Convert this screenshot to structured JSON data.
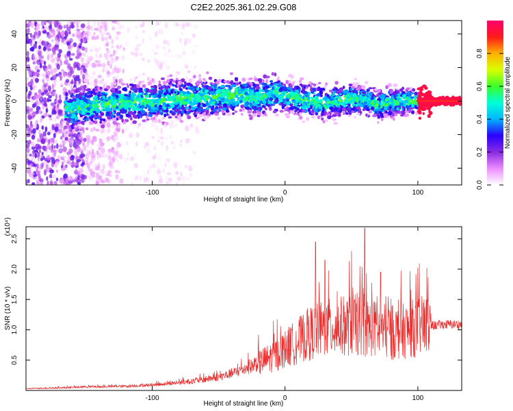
{
  "title": "C2E2.2025.361.02.29.G08",
  "colors": {
    "snr_line": "#ee2a2a",
    "colorbar": [
      "#ffffff",
      "#ec8cff",
      "#8a2be2",
      "#2a00ff",
      "#00b4ff",
      "#00ffd8",
      "#3cff2a",
      "#d8ff00",
      "#ffb000",
      "#ff1a1a",
      "#ff006e"
    ]
  },
  "chart_data": [
    {
      "type": "heatmap",
      "title": "C2E2.2025.361.02.29.G08",
      "xlabel": "Height of straight line (km)",
      "ylabel": "Frequency (Hz)",
      "xlim": [
        -195,
        133
      ],
      "ylim": [
        -50,
        48
      ],
      "xticks": [
        -100,
        0,
        100
      ],
      "yticks": [
        -40,
        -20,
        0,
        20,
        40
      ],
      "colorbar": {
        "label": "Normalized spectral amplitude",
        "range": [
          0,
          1
        ],
        "ticks": [
          0.0,
          0.2,
          0.4,
          0.6,
          0.8
        ]
      },
      "ridge_x": [
        -195,
        -160,
        -150,
        -140,
        -120,
        -100,
        -80,
        -60,
        -40,
        -35,
        -30,
        -25,
        -20,
        -15,
        -10,
        0,
        10,
        20,
        30,
        40,
        50,
        60,
        70,
        80,
        90,
        100,
        110,
        120,
        133
      ],
      "ridge_y": [
        -6,
        -5,
        -3,
        -2,
        -1,
        0,
        1,
        2,
        3,
        4,
        3,
        2,
        2,
        3,
        5,
        3,
        1,
        0,
        -1,
        0,
        1,
        1,
        -2,
        -1,
        0,
        0,
        0,
        0,
        0
      ]
    },
    {
      "type": "line",
      "title": "",
      "xlabel": "Height of straight line (km)",
      "ylabel": "SNR (10 * v/v)",
      "y_multiplier": "(x10⁴)",
      "xlim": [
        -195,
        133
      ],
      "ylim": [
        0,
        2.7
      ],
      "xticks": [
        -100,
        0,
        100
      ],
      "yticks": [
        0.5,
        1.0,
        1.5,
        2.0,
        2.5
      ],
      "series": [
        {
          "name": "SNR",
          "x": [
            -195,
            -175,
            -160,
            -150,
            -140,
            -120,
            -100,
            -90,
            -80,
            -70,
            -60,
            -50,
            -40,
            -30,
            -20,
            -10,
            0,
            10,
            20,
            30,
            40,
            50,
            60,
            70,
            80,
            90,
            100,
            110,
            120,
            133
          ],
          "y": [
            0.03,
            0.04,
            0.05,
            0.06,
            0.06,
            0.07,
            0.09,
            0.11,
            0.13,
            0.15,
            0.18,
            0.22,
            0.28,
            0.36,
            0.45,
            0.55,
            0.68,
            0.82,
            0.95,
            1.02,
            1.05,
            1.08,
            1.06,
            1.0,
            0.95,
            0.98,
            1.05,
            1.08,
            1.1,
            1.1
          ],
          "peaks": [
            {
              "x": 23,
              "y": 2.45
            },
            {
              "x": 60,
              "y": 2.68
            },
            {
              "x": 30,
              "y": 2.15
            },
            {
              "x": 50,
              "y": 2.3
            },
            {
              "x": 72,
              "y": 1.95
            }
          ]
        }
      ]
    }
  ]
}
